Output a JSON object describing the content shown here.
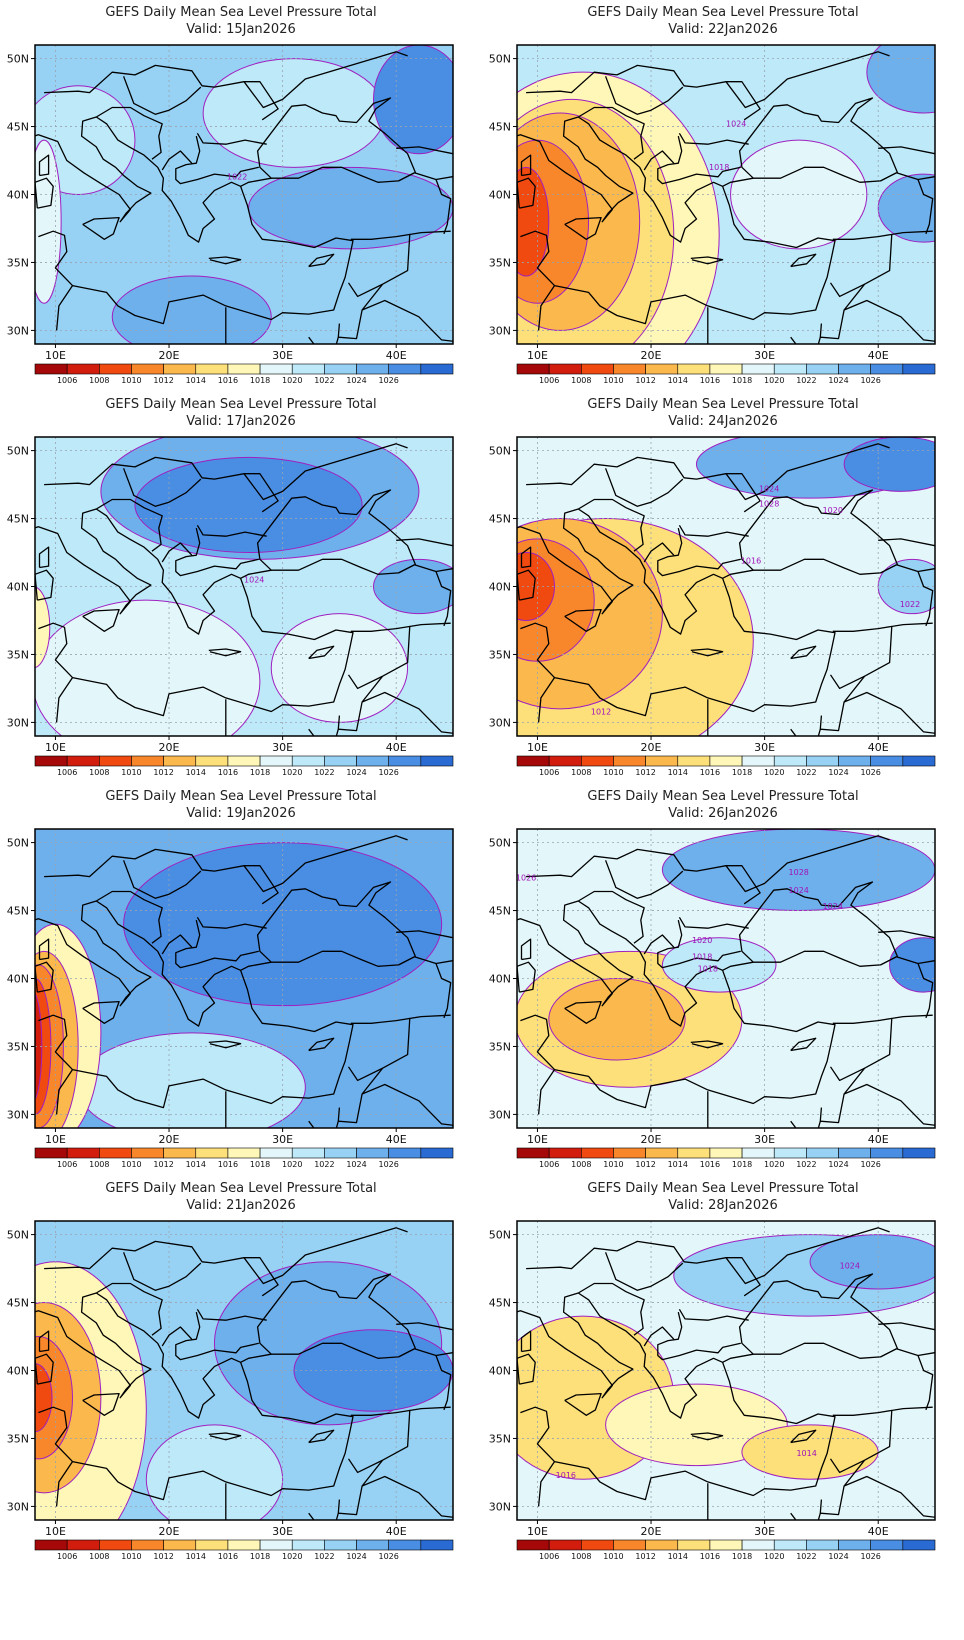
{
  "figure_title": "GEFS Daily Mean Sea Level Pressure Total",
  "valid_prefix": "Valid:",
  "panels": [
    {
      "valid": "15Jan2026",
      "contour_labels": [
        "1022"
      ]
    },
    {
      "valid": "22Jan2026",
      "contour_labels": [
        "1024",
        "1018"
      ]
    },
    {
      "valid": "17Jan2026",
      "contour_labels": [
        "1024"
      ]
    },
    {
      "valid": "24Jan2026",
      "contour_labels": [
        "1024",
        "1028",
        "1020",
        "1016",
        "1022",
        "1012"
      ]
    },
    {
      "valid": "19Jan2026",
      "contour_labels": []
    },
    {
      "valid": "26Jan2026",
      "contour_labels": [
        "1028",
        "1024",
        "1024",
        "1018",
        "1020",
        "1018",
        "1026"
      ]
    },
    {
      "valid": "21Jan2026",
      "contour_labels": []
    },
    {
      "valid": "28Jan2026",
      "contour_labels": [
        "1024",
        "1016",
        "1014"
      ]
    }
  ],
  "axes": {
    "lat_labels": [
      "50N",
      "45N",
      "40N",
      "35N",
      "30N"
    ],
    "lon_labels": [
      "10E",
      "20E",
      "30E",
      "40E"
    ]
  },
  "colorbar": {
    "labels": [
      "1006",
      "1008",
      "1010",
      "1012",
      "1014",
      "1016",
      "1018",
      "1020",
      "1022",
      "1024",
      "1026"
    ],
    "colors": [
      "#a50808",
      "#d21d0e",
      "#f04a10",
      "#f8872c",
      "#fbb84d",
      "#fde07a",
      "#fef7b7",
      "#e3f7fa",
      "#bde9f8",
      "#97d2f4",
      "#6eb0ec",
      "#4a8ee3",
      "#2a6bd3"
    ]
  },
  "pressure_fields": [
    {
      "background": 1022,
      "blobs": [
        {
          "v": 1020,
          "c": [
            12,
            44
          ],
          "r": [
            5,
            4
          ]
        },
        {
          "v": 1020,
          "c": [
            31,
            46
          ],
          "r": [
            8,
            4
          ]
        },
        {
          "v": 1024,
          "c": [
            36,
            39
          ],
          "r": [
            9,
            3
          ]
        },
        {
          "v": 1024,
          "c": [
            22,
            31
          ],
          "r": [
            7,
            3
          ]
        },
        {
          "v": 1026,
          "c": [
            42,
            47
          ],
          "r": [
            4,
            4
          ]
        },
        {
          "v": 1018,
          "c": [
            9,
            38
          ],
          "r": [
            1.5,
            6
          ]
        }
      ]
    },
    {
      "background": 1020,
      "blobs": [
        {
          "v": 1016,
          "c": [
            14,
            37
          ],
          "r": [
            12,
            12
          ]
        },
        {
          "v": 1014,
          "c": [
            13,
            37
          ],
          "r": [
            9,
            10
          ]
        },
        {
          "v": 1012,
          "c": [
            12,
            38
          ],
          "r": [
            7,
            8
          ]
        },
        {
          "v": 1010,
          "c": [
            10,
            38
          ],
          "r": [
            4.5,
            6
          ]
        },
        {
          "v": 1008,
          "c": [
            9,
            38
          ],
          "r": [
            2,
            4
          ]
        },
        {
          "v": 1018,
          "c": [
            33,
            40
          ],
          "r": [
            6,
            4
          ]
        },
        {
          "v": 1024,
          "c": [
            44,
            39
          ],
          "r": [
            4,
            2.5
          ]
        },
        {
          "v": 1024,
          "c": [
            44,
            49
          ],
          "r": [
            5,
            3
          ]
        }
      ]
    },
    {
      "background": 1020,
      "blobs": [
        {
          "v": 1024,
          "c": [
            28,
            47
          ],
          "r": [
            14,
            5
          ]
        },
        {
          "v": 1026,
          "c": [
            27,
            46
          ],
          "r": [
            10,
            3.5
          ]
        },
        {
          "v": 1018,
          "c": [
            18,
            33
          ],
          "r": [
            10,
            6
          ]
        },
        {
          "v": 1018,
          "c": [
            35,
            34
          ],
          "r": [
            6,
            4
          ]
        },
        {
          "v": 1016,
          "c": [
            8,
            37
          ],
          "r": [
            1.5,
            3
          ]
        },
        {
          "v": 1024,
          "c": [
            42,
            40
          ],
          "r": [
            4,
            2
          ]
        }
      ]
    },
    {
      "background": 1018,
      "blobs": [
        {
          "v": 1014,
          "c": [
            16,
            36
          ],
          "r": [
            13,
            9
          ]
        },
        {
          "v": 1012,
          "c": [
            12,
            38
          ],
          "r": [
            9,
            7
          ]
        },
        {
          "v": 1010,
          "c": [
            10,
            39
          ],
          "r": [
            5,
            4.5
          ]
        },
        {
          "v": 1008,
          "c": [
            9,
            40
          ],
          "r": [
            2.5,
            2.5
          ]
        },
        {
          "v": 1024,
          "c": [
            34,
            49
          ],
          "r": [
            10,
            2.5
          ]
        },
        {
          "v": 1026,
          "c": [
            42,
            49
          ],
          "r": [
            5,
            2
          ]
        },
        {
          "v": 1022,
          "c": [
            43,
            40
          ],
          "r": [
            3,
            2
          ]
        }
      ]
    },
    {
      "background": 1024,
      "blobs": [
        {
          "v": 1026,
          "c": [
            30,
            44
          ],
          "r": [
            14,
            6
          ]
        },
        {
          "v": 1020,
          "c": [
            22,
            32
          ],
          "r": [
            10,
            4
          ]
        },
        {
          "v": 1016,
          "c": [
            10,
            36
          ],
          "r": [
            4,
            8
          ]
        },
        {
          "v": 1012,
          "c": [
            9,
            35
          ],
          "r": [
            3,
            7
          ]
        },
        {
          "v": 1010,
          "c": [
            8.5,
            35
          ],
          "r": [
            2.2,
            6
          ]
        },
        {
          "v": 1008,
          "c": [
            8.2,
            35
          ],
          "r": [
            1.4,
            5
          ]
        },
        {
          "v": 1006,
          "c": [
            8,
            35
          ],
          "r": [
            0.8,
            4
          ]
        }
      ]
    },
    {
      "background": 1018,
      "blobs": [
        {
          "v": 1014,
          "c": [
            18,
            37
          ],
          "r": [
            10,
            5
          ]
        },
        {
          "v": 1012,
          "c": [
            17,
            37
          ],
          "r": [
            6,
            3
          ]
        },
        {
          "v": 1024,
          "c": [
            33,
            48
          ],
          "r": [
            12,
            3
          ]
        },
        {
          "v": 1026,
          "c": [
            44,
            41
          ],
          "r": [
            3,
            2
          ]
        },
        {
          "v": 1020,
          "c": [
            26,
            41
          ],
          "r": [
            5,
            2
          ]
        }
      ]
    },
    {
      "background": 1022,
      "blobs": [
        {
          "v": 1016,
          "c": [
            10,
            37
          ],
          "r": [
            8,
            11
          ]
        },
        {
          "v": 1012,
          "c": [
            9,
            38
          ],
          "r": [
            5,
            7
          ]
        },
        {
          "v": 1010,
          "c": [
            8.5,
            38
          ],
          "r": [
            3,
            4.5
          ]
        },
        {
          "v": 1008,
          "c": [
            8.2,
            38
          ],
          "r": [
            1.5,
            2.5
          ]
        },
        {
          "v": 1024,
          "c": [
            34,
            42
          ],
          "r": [
            10,
            6
          ]
        },
        {
          "v": 1026,
          "c": [
            38,
            40
          ],
          "r": [
            7,
            3
          ]
        },
        {
          "v": 1020,
          "c": [
            24,
            32
          ],
          "r": [
            6,
            4
          ]
        }
      ]
    },
    {
      "background": 1018,
      "blobs": [
        {
          "v": 1014,
          "c": [
            14,
            38
          ],
          "r": [
            8,
            6
          ]
        },
        {
          "v": 1016,
          "c": [
            24,
            36
          ],
          "r": [
            8,
            3
          ]
        },
        {
          "v": 1014,
          "c": [
            34,
            34
          ],
          "r": [
            6,
            2
          ]
        },
        {
          "v": 1022,
          "c": [
            34,
            47
          ],
          "r": [
            12,
            3
          ]
        },
        {
          "v": 1024,
          "c": [
            40,
            48
          ],
          "r": [
            6,
            2
          ]
        }
      ]
    }
  ]
}
